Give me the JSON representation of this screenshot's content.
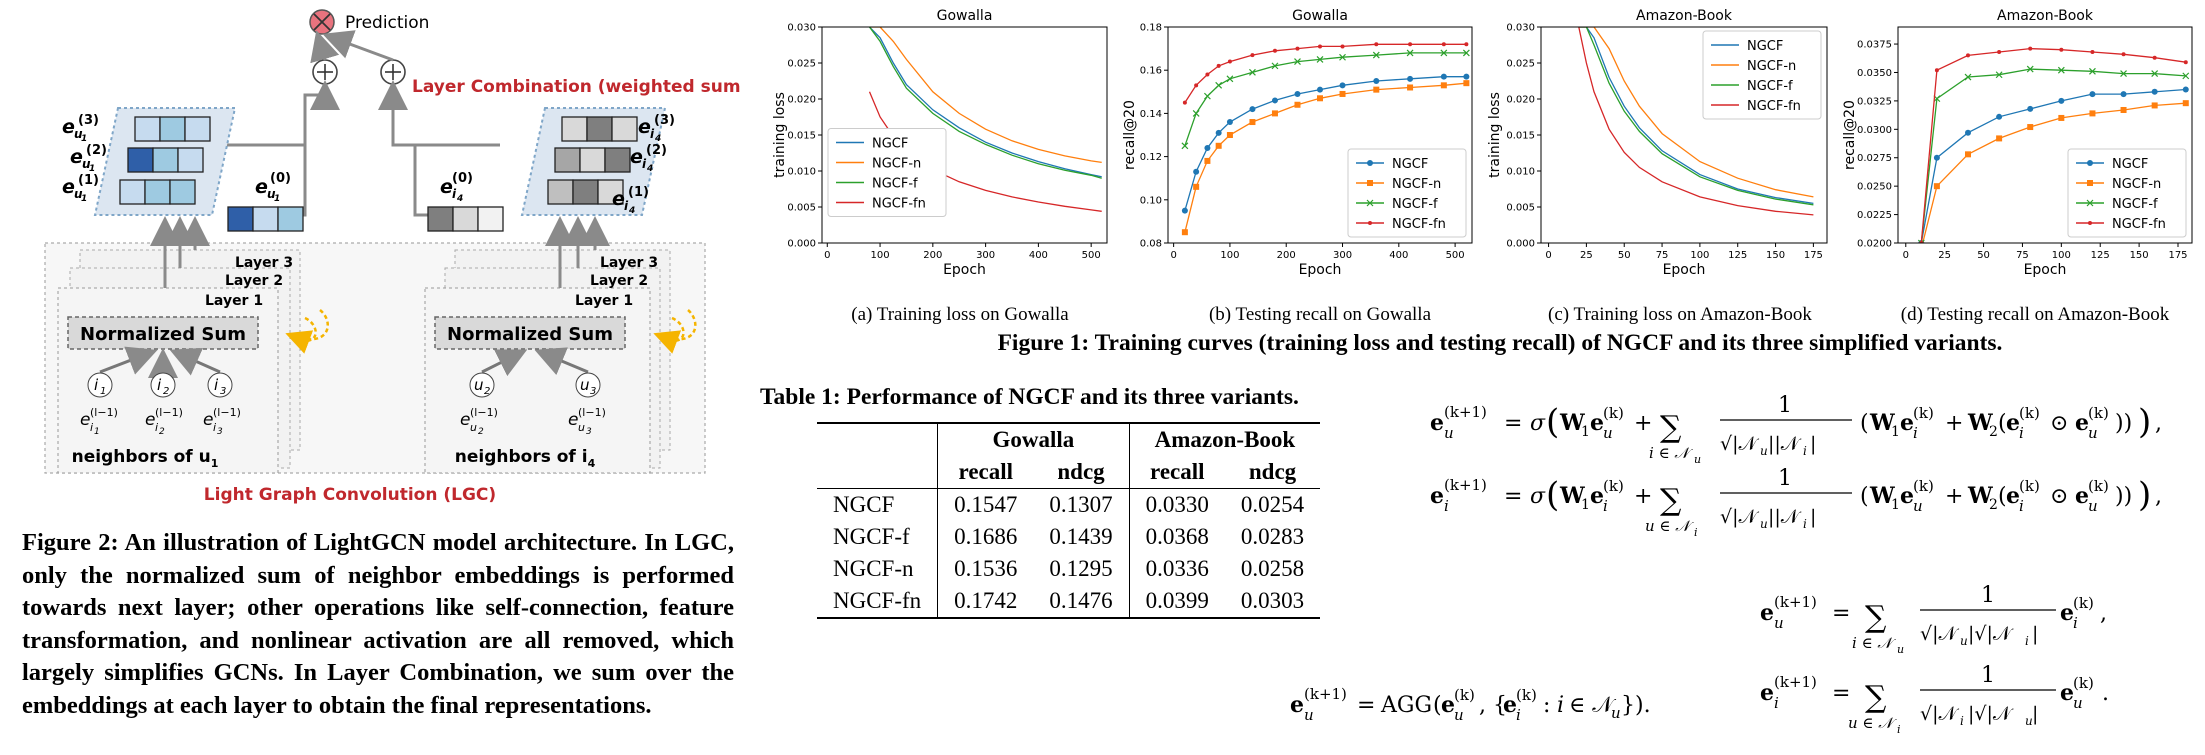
{
  "figure2": {
    "prediction_label": "Prediction",
    "layer_combination_label": "Layer Combination (weighted sum)",
    "lgc_label": "Light Graph Convolution (LGC)",
    "left_panel": {
      "layers": [
        "Layer 3",
        "Layer 2",
        "Layer 1"
      ],
      "normalized_sum": "Normalized Sum",
      "nodes": [
        "i1",
        "i2",
        "i3"
      ],
      "neighbors_label": "neighbors of u",
      "neighbors_sub": "1"
    },
    "right_panel": {
      "layers": [
        "Layer 3",
        "Layer 2",
        "Layer 1"
      ],
      "normalized_sum": "Normalized Sum",
      "nodes": [
        "u2",
        "u3"
      ],
      "neighbors_label": "neighbors of i",
      "neighbors_sub": "4"
    },
    "caption": "Figure 2: An illustration of LightGCN model architecture. In LGC, only the normalized sum of neighbor embeddings is performed towards next layer; other operations like self-connection, feature transformation, and nonlinear activation are all removed, which largely simplifies GCNs. In Layer Combination, we sum over the embeddings at each layer to obtain the final representations."
  },
  "figure1": {
    "caption": "Figure 1: Training curves (training loss and testing recall) of NGCF and its three simplified variants.",
    "subcaptions": [
      "(a)  Training loss on Gowalla",
      "(b)  Testing recall on Gowalla",
      "(c)  Training loss on Amazon-Book",
      "(d)  Testing recall on Amazon-Book"
    ]
  },
  "chart_data": [
    {
      "type": "line",
      "title": "Gowalla",
      "xlabel": "Epoch",
      "ylabel": "training loss",
      "xlim": [
        -10,
        530
      ],
      "ylim": [
        0.0,
        0.03
      ],
      "xticks": [
        0,
        100,
        200,
        300,
        400,
        500
      ],
      "yticks": [
        0.0,
        0.005,
        0.01,
        0.015,
        0.02,
        0.025,
        0.03
      ],
      "ytick_labels": [
        "0.000",
        "0.005",
        "0.010",
        "0.015",
        "0.020",
        "0.025",
        "0.030"
      ],
      "legend_position": "center-left",
      "x": [
        80,
        100,
        125,
        150,
        200,
        250,
        300,
        350,
        400,
        450,
        500,
        520
      ],
      "series": [
        {
          "name": "NGCF",
          "color": "#1f77b4",
          "values": [
            0.03,
            0.0285,
            0.025,
            0.022,
            0.0185,
            0.016,
            0.014,
            0.0125,
            0.0113,
            0.0103,
            0.0095,
            0.0092
          ]
        },
        {
          "name": "NGCF-n",
          "color": "#ff7f0e",
          "values": [
            0.03,
            0.03,
            0.028,
            0.0255,
            0.021,
            0.018,
            0.0158,
            0.0142,
            0.013,
            0.0121,
            0.0114,
            0.0112
          ]
        },
        {
          "name": "NGCF-f",
          "color": "#2ca02c",
          "values": [
            0.03,
            0.028,
            0.0245,
            0.0215,
            0.018,
            0.0155,
            0.0137,
            0.0122,
            0.011,
            0.0101,
            0.0094,
            0.009
          ]
        },
        {
          "name": "NGCF-fn",
          "color": "#d62728",
          "values": [
            0.021,
            0.0175,
            0.0148,
            0.0128,
            0.0102,
            0.0085,
            0.0073,
            0.0064,
            0.0057,
            0.0051,
            0.0046,
            0.0044
          ]
        }
      ]
    },
    {
      "type": "line",
      "title": "Gowalla",
      "xlabel": "Epoch",
      "ylabel": "recall@20",
      "xlim": [
        -10,
        530
      ],
      "ylim": [
        0.08,
        0.18
      ],
      "xticks": [
        0,
        100,
        200,
        300,
        400,
        500
      ],
      "yticks": [
        0.08,
        0.1,
        0.12,
        0.14,
        0.16,
        0.18
      ],
      "ytick_labels": [
        "0.08",
        "0.10",
        "0.12",
        "0.14",
        "0.16",
        "0.18"
      ],
      "legend_position": "lower-right",
      "x": [
        20,
        40,
        60,
        80,
        100,
        140,
        180,
        220,
        260,
        300,
        360,
        420,
        480,
        520
      ],
      "series": [
        {
          "name": "NGCF",
          "color": "#1f77b4",
          "values": [
            0.095,
            0.113,
            0.124,
            0.131,
            0.136,
            0.142,
            0.146,
            0.149,
            0.151,
            0.153,
            0.155,
            0.156,
            0.157,
            0.157
          ]
        },
        {
          "name": "NGCF-n",
          "color": "#ff7f0e",
          "values": [
            0.085,
            0.106,
            0.118,
            0.125,
            0.13,
            0.136,
            0.14,
            0.144,
            0.147,
            0.149,
            0.151,
            0.152,
            0.153,
            0.154
          ]
        },
        {
          "name": "NGCF-f",
          "color": "#2ca02c",
          "values": [
            0.125,
            0.14,
            0.148,
            0.153,
            0.156,
            0.159,
            0.162,
            0.164,
            0.165,
            0.166,
            0.167,
            0.168,
            0.168,
            0.168
          ]
        },
        {
          "name": "NGCF-fn",
          "color": "#d62728",
          "values": [
            0.145,
            0.153,
            0.158,
            0.162,
            0.164,
            0.167,
            0.169,
            0.17,
            0.171,
            0.171,
            0.172,
            0.172,
            0.172,
            0.172
          ]
        }
      ]
    },
    {
      "type": "line",
      "title": "Amazon-Book",
      "xlabel": "Epoch",
      "ylabel": "training loss",
      "xlim": [
        -5,
        184
      ],
      "ylim": [
        0.0,
        0.03
      ],
      "xticks": [
        0,
        25,
        50,
        75,
        100,
        125,
        150,
        175
      ],
      "yticks": [
        0.0,
        0.005,
        0.01,
        0.015,
        0.02,
        0.025,
        0.03
      ],
      "ytick_labels": [
        "0.000",
        "0.005",
        "0.010",
        "0.015",
        "0.020",
        "0.025",
        "0.030"
      ],
      "legend_position": "upper-right",
      "x": [
        20,
        25,
        30,
        40,
        50,
        60,
        75,
        100,
        125,
        150,
        175
      ],
      "series": [
        {
          "name": "NGCF",
          "color": "#1f77b4",
          "values": [
            0.03,
            0.03,
            0.0285,
            0.023,
            0.019,
            0.016,
            0.0128,
            0.0095,
            0.0075,
            0.0063,
            0.0055
          ]
        },
        {
          "name": "NGCF-n",
          "color": "#ff7f0e",
          "values": [
            0.03,
            0.03,
            0.03,
            0.027,
            0.0225,
            0.019,
            0.0152,
            0.0113,
            0.009,
            0.0074,
            0.0064
          ]
        },
        {
          "name": "NGCF-f",
          "color": "#2ca02c",
          "values": [
            0.03,
            0.03,
            0.0275,
            0.0222,
            0.0183,
            0.0155,
            0.0124,
            0.0092,
            0.0073,
            0.0061,
            0.0053
          ]
        },
        {
          "name": "NGCF-fn",
          "color": "#d62728",
          "values": [
            0.03,
            0.025,
            0.021,
            0.0158,
            0.0126,
            0.0105,
            0.0085,
            0.0064,
            0.0052,
            0.0044,
            0.0039
          ]
        }
      ]
    },
    {
      "type": "line",
      "title": "Amazon-Book",
      "xlabel": "Epoch",
      "ylabel": "recall@20",
      "xlim": [
        -5,
        184
      ],
      "ylim": [
        0.02,
        0.039
      ],
      "xticks": [
        0,
        25,
        50,
        75,
        100,
        125,
        150,
        175
      ],
      "yticks": [
        0.02,
        0.0225,
        0.025,
        0.0275,
        0.03,
        0.0325,
        0.035,
        0.0375
      ],
      "ytick_labels": [
        "0.0200",
        "0.0225",
        "0.0250",
        "0.0275",
        "0.0300",
        "0.0325",
        "0.0350",
        "0.0375"
      ],
      "legend_position": "lower-right",
      "x": [
        10,
        20,
        40,
        60,
        80,
        100,
        120,
        140,
        160,
        180
      ],
      "series": [
        {
          "name": "NGCF",
          "color": "#1f77b4",
          "values": [
            0.02,
            0.0275,
            0.0297,
            0.0311,
            0.0318,
            0.0325,
            0.0331,
            0.0331,
            0.0333,
            0.0335
          ]
        },
        {
          "name": "NGCF-n",
          "color": "#ff7f0e",
          "values": [
            0.0195,
            0.025,
            0.0278,
            0.0292,
            0.0302,
            0.031,
            0.0314,
            0.0317,
            0.0321,
            0.0323
          ]
        },
        {
          "name": "NGCF-f",
          "color": "#2ca02c",
          "values": [
            0.02,
            0.0327,
            0.0346,
            0.0348,
            0.0353,
            0.0352,
            0.0351,
            0.0349,
            0.0349,
            0.0347
          ]
        },
        {
          "name": "NGCF-fn",
          "color": "#d62728",
          "values": [
            0.02,
            0.0352,
            0.0365,
            0.0368,
            0.0371,
            0.037,
            0.0368,
            0.0366,
            0.0363,
            0.0359
          ]
        }
      ]
    }
  ],
  "table1": {
    "caption": "Table 1: Performance of NGCF and its three variants.",
    "groups": [
      "Gowalla",
      "Amazon-Book"
    ],
    "metrics": [
      "recall",
      "ndcg",
      "recall",
      "ndcg"
    ],
    "rows": [
      {
        "model": "NGCF",
        "values": [
          "0.1547",
          "0.1307",
          "0.0330",
          "0.0254"
        ]
      },
      {
        "model": "NGCF-f",
        "values": [
          "0.1686",
          "0.1439",
          "0.0368",
          "0.0283"
        ]
      },
      {
        "model": "NGCF-n",
        "values": [
          "0.1536",
          "0.1295",
          "0.0336",
          "0.0258"
        ]
      },
      {
        "model": "NGCF-fn",
        "values": [
          "0.1742",
          "0.1476",
          "0.0399",
          "0.0303"
        ]
      }
    ]
  },
  "equations": {
    "agg": "AGG",
    "sigma": "σ",
    "sum": "∑",
    "one": "1"
  }
}
